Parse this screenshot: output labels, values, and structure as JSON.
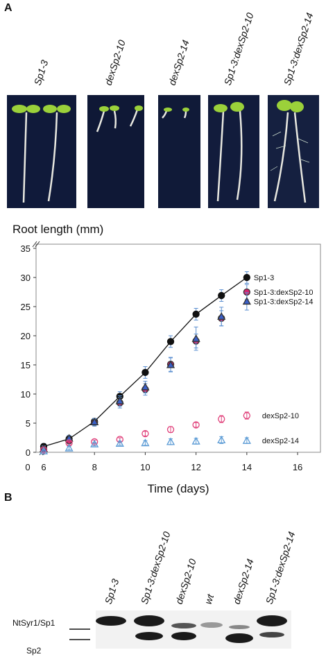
{
  "panel_a": {
    "letter": "A",
    "photo_labels": [
      "Sp1-3",
      "dexSp2-10",
      "dexSp2-14",
      "Sp1-3:dexSp2-10",
      "Sp1-3:dexSp2-14"
    ]
  },
  "chart_data": {
    "type": "line",
    "title": "Root length  (mm)",
    "x_label": "Time (days)",
    "x_origin_label": "0",
    "x": [
      6,
      7,
      8,
      9,
      10,
      11,
      12,
      13,
      14
    ],
    "xlim": [
      5.7,
      16.9
    ],
    "xticks": [
      6,
      8,
      10,
      12,
      14,
      16
    ],
    "ylim": [
      0,
      35
    ],
    "yticks": [
      0,
      5,
      10,
      15,
      20,
      25,
      30,
      35
    ],
    "series": [
      {
        "name": "Sp1-3",
        "color": "#111111",
        "marker": "circle",
        "filled": true,
        "line": true,
        "values": [
          1.0,
          2.3,
          5.3,
          9.6,
          13.7,
          19.0,
          23.7,
          26.9,
          30.0
        ],
        "errors": [
          0.5,
          0.5,
          0.5,
          0.8,
          1.0,
          1.0,
          1.0,
          1.0,
          1.0
        ]
      },
      {
        "name": "Sp1-3:dexSp2-10",
        "color": "#d6246e",
        "marker": "circle",
        "filled": true,
        "line": false,
        "values": [
          0.5,
          2.0,
          5.1,
          8.5,
          10.8,
          15.1,
          19.1,
          23.0,
          27.5
        ],
        "errors": [
          0.5,
          0.5,
          0.6,
          0.9,
          1.0,
          1.2,
          1.2,
          1.3,
          1.3
        ]
      },
      {
        "name": "Sp1-3:dexSp2-14",
        "color": "#3a5fc8",
        "marker": "triangle",
        "filled": true,
        "line": false,
        "values": [
          0.6,
          2.4,
          5.2,
          8.8,
          11.2,
          15.0,
          19.5,
          23.3,
          25.9
        ],
        "errors": [
          0.5,
          0.5,
          0.6,
          0.9,
          1.0,
          1.2,
          2.0,
          1.6,
          1.5
        ]
      },
      {
        "name": "dexSp2-10",
        "color": "#e0407a",
        "marker": "circle",
        "filled": false,
        "line": false,
        "values": [
          0.4,
          1.6,
          1.8,
          2.2,
          3.2,
          3.9,
          4.7,
          5.7,
          6.3
        ],
        "errors": [
          0.3,
          0.3,
          0.3,
          0.3,
          0.4,
          0.5,
          0.4,
          0.6,
          0.6
        ]
      },
      {
        "name": "dexSp2-14",
        "color": "#5b9bd5",
        "marker": "triangle",
        "filled": false,
        "line": false,
        "values": [
          0.2,
          0.7,
          1.4,
          1.5,
          1.6,
          1.8,
          1.9,
          2.1,
          2.0
        ],
        "errors": [
          0.2,
          0.3,
          0.3,
          0.3,
          0.4,
          0.5,
          0.5,
          0.6,
          0.5
        ]
      }
    ]
  },
  "panel_b": {
    "letter": "B",
    "lane_labels": [
      "Sp1-3",
      "Sp1-3:dexSp2-10",
      "dexSp2-10",
      "wt",
      "dexSp2-14",
      "Sp1-3:dexSp2-14"
    ],
    "band_labels": [
      "NtSyr1/Sp1",
      "Sp2"
    ]
  }
}
